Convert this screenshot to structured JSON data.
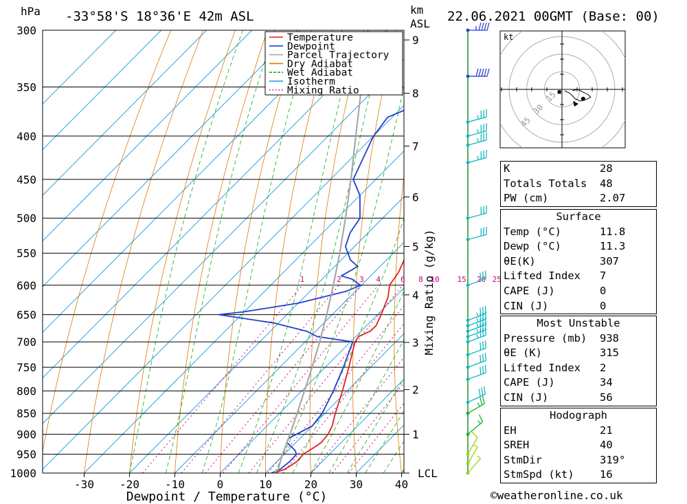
{
  "header": {
    "hpa_unit": "hPa",
    "location": "-33°58'S  18°36'E  42m  ASL",
    "km_unit": "km",
    "asl_unit": "ASL",
    "datetime": "22.06.2021  00GMT  (Base: 00)"
  },
  "chart_data": {
    "type": "line",
    "title": "-33°58'S  18°36'E  42m  ASL",
    "xlabel": "Dewpoint / Temperature (°C)",
    "ylabel": "hPa",
    "right_ylabel": "km ASL",
    "mixing_ratio_label": "Mixing Ratio (g/kg)",
    "lcl_label": "LCL",
    "xlim": [
      -40,
      40
    ],
    "ylim": [
      1000,
      300
    ],
    "x_ticks": [
      -30,
      -20,
      -10,
      0,
      10,
      20,
      30,
      40
    ],
    "pressure_ticks": [
      300,
      350,
      400,
      450,
      500,
      550,
      600,
      650,
      700,
      750,
      800,
      850,
      900,
      950,
      1000
    ],
    "km_ticks": [
      {
        "km": 1,
        "p": 900
      },
      {
        "km": 2,
        "p": 797
      },
      {
        "km": 3,
        "p": 701
      },
      {
        "km": 4,
        "p": 616
      },
      {
        "km": 5,
        "p": 540
      },
      {
        "km": 6,
        "p": 472
      },
      {
        "km": 7,
        "p": 411
      },
      {
        "km": 8,
        "p": 356
      },
      {
        "km": 9,
        "p": 308
      }
    ],
    "mixing_ratio_values": [
      "1",
      "2",
      "3",
      "4",
      "6",
      "8",
      "10",
      "15",
      "20",
      "25"
    ],
    "legend": [
      {
        "name": "Temperature",
        "color": "#e02020"
      },
      {
        "name": "Dewpoint",
        "color": "#1f3fd0"
      },
      {
        "name": "Parcel Trajectory",
        "color": "#a8a8a8"
      },
      {
        "name": "Dry Adiabat",
        "color": "#e07800"
      },
      {
        "name": "Wet Adiabat",
        "color": "#11aa11"
      },
      {
        "name": "Isotherm",
        "color": "#1799e0"
      },
      {
        "name": "Mixing Ratio",
        "color": "#cc0077"
      }
    ],
    "series": [
      {
        "name": "Temperature",
        "color": "#e02020",
        "points": [
          [
            1000,
            11.8
          ],
          [
            990,
            13.4
          ],
          [
            970,
            14.4
          ],
          [
            950,
            14.2
          ],
          [
            930,
            15.2
          ],
          [
            920,
            15.6
          ],
          [
            900,
            15.3
          ],
          [
            880,
            14.4
          ],
          [
            850,
            12.3
          ],
          [
            800,
            9.0
          ],
          [
            750,
            5.2
          ],
          [
            700,
            1.0
          ],
          [
            690,
            0.6
          ],
          [
            680,
            2.0
          ],
          [
            670,
            2.1
          ],
          [
            650,
            0.8
          ],
          [
            620,
            -1.5
          ],
          [
            600,
            -3.8
          ],
          [
            580,
            -4.6
          ],
          [
            550,
            -6.9
          ],
          [
            500,
            -11.3
          ],
          [
            450,
            -16.5
          ],
          [
            400,
            -22.5
          ],
          [
            380,
            -25.1
          ],
          [
            350,
            -30.0
          ],
          [
            320,
            -33.1
          ],
          [
            300,
            -37.2
          ]
        ]
      },
      {
        "name": "Dewpoint",
        "color": "#1f3fd0",
        "points": [
          [
            1000,
            11.3
          ],
          [
            990,
            12.4
          ],
          [
            970,
            12.8
          ],
          [
            950,
            12.7
          ],
          [
            940,
            11.5
          ],
          [
            920,
            8.0
          ],
          [
            910,
            7.5
          ],
          [
            880,
            10.0
          ],
          [
            850,
            9.4
          ],
          [
            800,
            7.0
          ],
          [
            750,
            4.0
          ],
          [
            700,
            0.5
          ],
          [
            690,
            -8.5
          ],
          [
            680,
            -12.0
          ],
          [
            665,
            -21.0
          ],
          [
            650,
            -35.0
          ],
          [
            645,
            -30.0
          ],
          [
            630,
            -20.0
          ],
          [
            610,
            -12.0
          ],
          [
            600,
            -10.2
          ],
          [
            590,
            -13.5
          ],
          [
            585,
            -16.5
          ],
          [
            575,
            -15.4
          ],
          [
            570,
            -15.0
          ],
          [
            560,
            -18.0
          ],
          [
            540,
            -22.0
          ],
          [
            520,
            -24.0
          ],
          [
            500,
            -25.0
          ],
          [
            470,
            -30.0
          ],
          [
            450,
            -35.0
          ],
          [
            400,
            -40.0
          ],
          [
            380,
            -41.0
          ],
          [
            370,
            -38.0
          ],
          [
            360,
            -33.0
          ],
          [
            350,
            -33.0
          ],
          [
            320,
            -40.5
          ],
          [
            300,
            -47.7
          ]
        ]
      },
      {
        "name": "Parcel Trajectory",
        "color": "#a8a8a8",
        "points": [
          [
            1000,
            11.8
          ],
          [
            990,
            12.0
          ],
          [
            950,
            9.6
          ],
          [
            900,
            6.9
          ],
          [
            850,
            3.9
          ],
          [
            800,
            0.6
          ],
          [
            750,
            -2.9
          ],
          [
            700,
            -6.8
          ],
          [
            650,
            -11.2
          ],
          [
            600,
            -16.2
          ],
          [
            550,
            -21.8
          ],
          [
            500,
            -28.2
          ],
          [
            450,
            -35.5
          ],
          [
            400,
            -43.9
          ],
          [
            350,
            -53.4
          ],
          [
            300,
            -64.4
          ]
        ]
      }
    ],
    "wind_barbs_level": [
      {
        "p": 1000,
        "dir": 319,
        "kt": 5
      },
      {
        "p": 975,
        "dir": 330,
        "kt": 8
      },
      {
        "p": 950,
        "dir": 330,
        "kt": 10
      },
      {
        "p": 900,
        "dir": 310,
        "kt": 15
      },
      {
        "p": 850,
        "dir": 300,
        "kt": 25
      },
      {
        "p": 825,
        "dir": 295,
        "kt": 30
      },
      {
        "p": 775,
        "dir": 290,
        "kt": 30
      },
      {
        "p": 750,
        "dir": 290,
        "kt": 30
      },
      {
        "p": 725,
        "dir": 290,
        "kt": 30
      },
      {
        "p": 700,
        "dir": 290,
        "kt": 35
      },
      {
        "p": 690,
        "dir": 290,
        "kt": 35
      },
      {
        "p": 680,
        "dir": 290,
        "kt": 35
      },
      {
        "p": 670,
        "dir": 290,
        "kt": 35
      },
      {
        "p": 660,
        "dir": 290,
        "kt": 35
      },
      {
        "p": 600,
        "dir": 290,
        "kt": 30
      },
      {
        "p": 530,
        "dir": 285,
        "kt": 30
      },
      {
        "p": 500,
        "dir": 285,
        "kt": 30
      },
      {
        "p": 430,
        "dir": 285,
        "kt": 35
      },
      {
        "p": 410,
        "dir": 285,
        "kt": 35
      },
      {
        "p": 400,
        "dir": 285,
        "kt": 35
      },
      {
        "p": 385,
        "dir": 285,
        "kt": 35
      },
      {
        "p": 340,
        "dir": 270,
        "kt": 50
      },
      {
        "p": 300,
        "dir": 270,
        "kt": 45
      }
    ],
    "hodograph": {
      "unit": "kt",
      "ring_labels": [
        "15",
        "30",
        "45"
      ],
      "trace": [
        [
          2,
          -1
        ],
        [
          6,
          -3
        ],
        [
          10,
          -7
        ],
        [
          14,
          -9
        ],
        [
          18,
          -8
        ],
        [
          22,
          -6
        ],
        [
          20,
          -4
        ],
        [
          16,
          -2
        ],
        [
          12,
          0
        ],
        [
          8,
          -1
        ]
      ],
      "storm_motion": [
        12,
        -4
      ],
      "markers": [
        [
          -2,
          -2
        ]
      ]
    }
  },
  "tables": [
    {
      "title": "",
      "rows": [
        {
          "k": "K",
          "v": "28"
        },
        {
          "k": "Totals Totals",
          "v": "48"
        },
        {
          "k": "PW (cm)",
          "v": "2.07"
        }
      ]
    },
    {
      "title": "Surface",
      "rows": [
        {
          "k": "Temp (°C)",
          "v": "11.8"
        },
        {
          "k": "Dewp (°C)",
          "v": "11.3"
        },
        {
          "k": "θE(K)",
          "v": "307"
        },
        {
          "k": "Lifted Index",
          "v": "7"
        },
        {
          "k": "CAPE (J)",
          "v": "0"
        },
        {
          "k": "CIN (J)",
          "v": "0"
        }
      ]
    },
    {
      "title": "Most Unstable",
      "rows": [
        {
          "k": "Pressure (mb)",
          "v": "938"
        },
        {
          "k": "θE (K)",
          "v": "315"
        },
        {
          "k": "Lifted Index",
          "v": "2"
        },
        {
          "k": "CAPE (J)",
          "v": "34"
        },
        {
          "k": "CIN (J)",
          "v": "56"
        }
      ]
    },
    {
      "title": "Hodograph",
      "rows": [
        {
          "k": "EH",
          "v": "21"
        },
        {
          "k": "SREH",
          "v": "40"
        },
        {
          "k": "StmDir",
          "v": "319°"
        },
        {
          "k": "StmSpd (kt)",
          "v": "16"
        }
      ]
    }
  ],
  "footer": {
    "copyright": "©weatheronline.co.uk"
  }
}
